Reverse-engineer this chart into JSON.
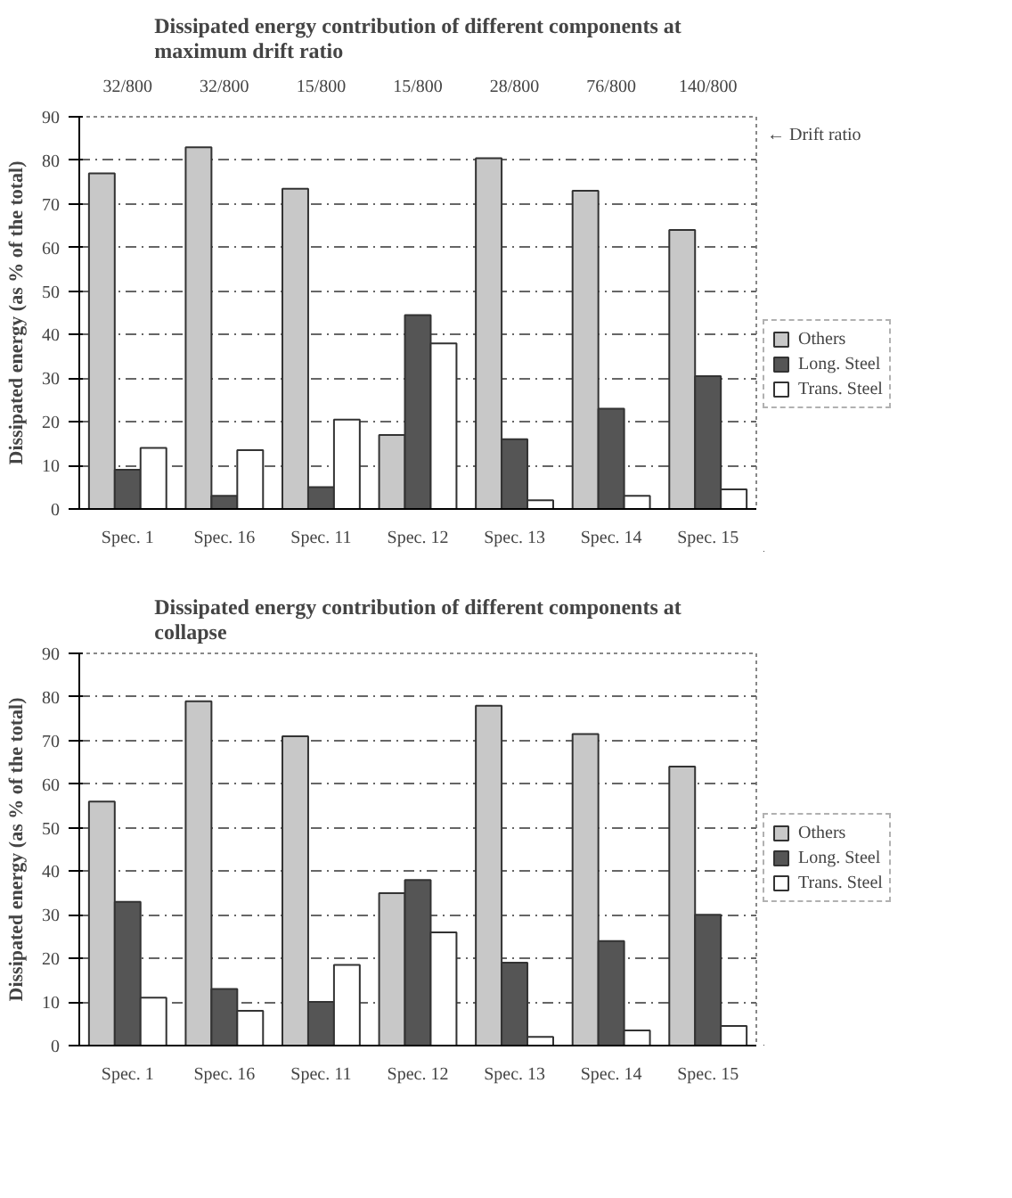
{
  "chart_data": [
    {
      "type": "bar",
      "title": "Dissipated energy contribution of different components at maximum drift ratio",
      "ylabel": "Dissipated energy (as % of the total)",
      "categories": [
        "Spec. 1",
        "Spec. 16",
        "Spec. 11",
        "Spec. 12",
        "Spec. 13",
        "Spec. 14",
        "Spec. 15"
      ],
      "series": [
        {
          "name": "Others",
          "color": "#c8c8c8",
          "values": [
            77,
            83,
            73.5,
            17,
            80.5,
            73,
            64
          ]
        },
        {
          "name": "Long. Steel",
          "color": "#555555",
          "values": [
            9,
            3,
            5,
            44.5,
            16,
            23,
            30.5
          ]
        },
        {
          "name": "Trans. Steel",
          "color": "#ffffff",
          "values": [
            14,
            13.5,
            20.5,
            38,
            2,
            3,
            4.5
          ]
        }
      ],
      "ylim": [
        0,
        90
      ],
      "yticks": [
        0,
        10,
        20,
        30,
        40,
        50,
        60,
        70,
        80,
        90
      ],
      "grid": "y",
      "legend": "right",
      "annotations": [
        "32/800",
        "32/800",
        "15/800",
        "15/800",
        "28/800",
        "76/800",
        "140/800",
        "← Drift ratio"
      ]
    },
    {
      "type": "bar",
      "title": "Dissipated energy contribution of different components at collapse",
      "ylabel": "Dissipated energy (as % of the total)",
      "categories": [
        "Spec. 1",
        "Spec. 16",
        "Spec. 11",
        "Spec. 12",
        "Spec. 13",
        "Spec. 14",
        "Spec. 15"
      ],
      "series": [
        {
          "name": "Others",
          "color": "#c8c8c8",
          "values": [
            56,
            79,
            71,
            35,
            78,
            71.5,
            64
          ]
        },
        {
          "name": "Long. Steel",
          "color": "#555555",
          "values": [
            33,
            13,
            10,
            38,
            19,
            24,
            30
          ]
        },
        {
          "name": "Trans. Steel",
          "color": "#ffffff",
          "values": [
            11,
            8,
            18.5,
            26,
            2,
            3.5,
            4.5
          ]
        }
      ],
      "ylim": [
        0,
        90
      ],
      "yticks": [
        0,
        10,
        20,
        30,
        40,
        50,
        60,
        70,
        80,
        90
      ],
      "grid": "y",
      "legend": "right"
    }
  ]
}
